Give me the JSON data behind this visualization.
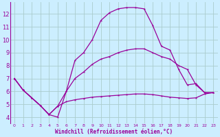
{
  "xlabel": "Windchill (Refroidissement éolien,°C)",
  "bg_color": "#cceeff",
  "grid_color": "#aacccc",
  "line_color": "#990099",
  "xlim": [
    -0.5,
    23.5
  ],
  "ylim": [
    3.5,
    12.9
  ],
  "xticks": [
    0,
    1,
    2,
    3,
    4,
    5,
    6,
    7,
    8,
    9,
    10,
    11,
    12,
    13,
    14,
    15,
    16,
    17,
    18,
    19,
    20,
    21,
    22,
    23
  ],
  "yticks": [
    4,
    5,
    6,
    7,
    8,
    9,
    10,
    11,
    12
  ],
  "line1_x": [
    0,
    1,
    2,
    3,
    4,
    5,
    6,
    7,
    8,
    9,
    10,
    11,
    12,
    13,
    14,
    15,
    16,
    17,
    18,
    19,
    20,
    21,
    22,
    23
  ],
  "line1_y": [
    7.0,
    6.1,
    5.5,
    4.9,
    4.2,
    4.0,
    6.0,
    8.4,
    9.0,
    10.0,
    11.5,
    12.1,
    12.4,
    12.5,
    12.5,
    12.4,
    11.1,
    9.5,
    9.2,
    7.7,
    6.5,
    6.6,
    5.9,
    5.9
  ],
  "line2_x": [
    0,
    1,
    2,
    3,
    4,
    5,
    6,
    7,
    8,
    9,
    10,
    11,
    12,
    13,
    14,
    15,
    16,
    17,
    18,
    19,
    20,
    21,
    22,
    23
  ],
  "line2_y": [
    7.0,
    6.1,
    5.5,
    4.9,
    4.2,
    4.85,
    6.0,
    7.0,
    7.5,
    8.1,
    8.5,
    8.7,
    9.0,
    9.2,
    9.3,
    9.3,
    9.0,
    8.7,
    8.5,
    8.0,
    7.7,
    6.5,
    5.9,
    5.9
  ],
  "line3_x": [
    0,
    1,
    2,
    3,
    4,
    5,
    6,
    7,
    8,
    9,
    10,
    11,
    12,
    13,
    14,
    15,
    16,
    17,
    18,
    19,
    20,
    21,
    22,
    23
  ],
  "line3_y": [
    7.0,
    6.1,
    5.5,
    4.9,
    4.2,
    4.85,
    5.2,
    5.35,
    5.45,
    5.55,
    5.6,
    5.65,
    5.7,
    5.75,
    5.8,
    5.8,
    5.75,
    5.65,
    5.55,
    5.5,
    5.45,
    5.5,
    5.8,
    5.9
  ]
}
